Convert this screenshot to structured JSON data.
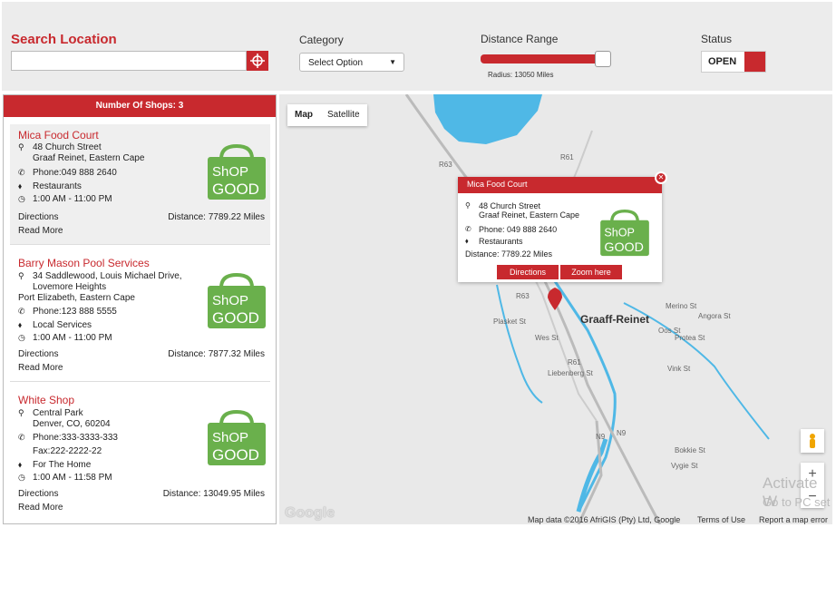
{
  "header": {
    "search_title": "Search Location",
    "search_placeholder": "",
    "category_label": "Category",
    "category_value": "Select Option",
    "distance_label": "Distance Range",
    "radius_text": "Radius: 13050 Miles",
    "distance_fraction": 0.96,
    "status_label": "Status",
    "status_value": "OPEN"
  },
  "panel": {
    "title": "Number Of Shops: 3",
    "shops": [
      {
        "name": "Mica Food Court",
        "address1": "48 Church Street",
        "address2": "Graaf Reinet, Eastern Cape",
        "phone": "Phone:049 888 2640",
        "category": "Restaurants",
        "hours": "1:00 AM - 11:00 PM",
        "directions": "Directions",
        "read_more": "Read More",
        "distance": "Distance: 7789.22 Miles"
      },
      {
        "name": "Barry Mason Pool Services",
        "address1": "34 Saddlewood, Louis Michael Drive,",
        "address1b": "Lovemore Heights",
        "address2": "Port Elizabeth, Eastern Cape",
        "phone": "Phone:123 888 5555",
        "category": "Local Services",
        "hours": "1:00 AM - 11:00 PM",
        "directions": "Directions",
        "read_more": "Read More",
        "distance": "Distance: 7877.32 Miles"
      },
      {
        "name": "White Shop",
        "address1": "Central Park",
        "address2": "Denver, CO, 60204",
        "phone": "Phone:333-3333-333",
        "fax": "Fax:222-2222-22",
        "category": "For The Home",
        "hours": "1:00 AM - 11:58 PM",
        "directions": "Directions",
        "read_more": "Read More",
        "distance": "Distance: 13049.95 Miles"
      }
    ]
  },
  "map": {
    "map_btn": "Map",
    "satellite_btn": "Satellite",
    "popup": {
      "title": "Mica Food Court",
      "address1": "48 Church Street",
      "address2": "Graaf Reinet, Eastern Cape",
      "phone": "Phone: 049 888 2640",
      "category": "Restaurants",
      "distance": "Distance: 7789.22 Miles",
      "directions": "Directions",
      "zoom": "Zoom here",
      "close": "✕"
    },
    "city": "Graaff-Reinet",
    "places": [
      "R63",
      "R61",
      "R63",
      "R63",
      "R61",
      "N9",
      "N9",
      "Merino St",
      "Angora St",
      "Oos St",
      "Protea St",
      "Plasket St",
      "Wes St",
      "Liebenberg St",
      "Vink St",
      "Bokkie St",
      "Vygie St"
    ],
    "google_logo": "Google",
    "attribution": "Map data ©2016 AfriGIS (Pty) Ltd, Google",
    "terms": "Terms of Use",
    "report": "Report a map error",
    "zoom_in": "+",
    "zoom_out": "−",
    "watermark_line1": "Activate W",
    "watermark_line2": "Go to PC set"
  },
  "logo_text": {
    "line1": "ShOP",
    "line2": "GOOD",
    "small": "for"
  },
  "colors": {
    "accent": "#c8292e",
    "logo_green": "#6ab04c",
    "water": "#4fb8e6"
  }
}
